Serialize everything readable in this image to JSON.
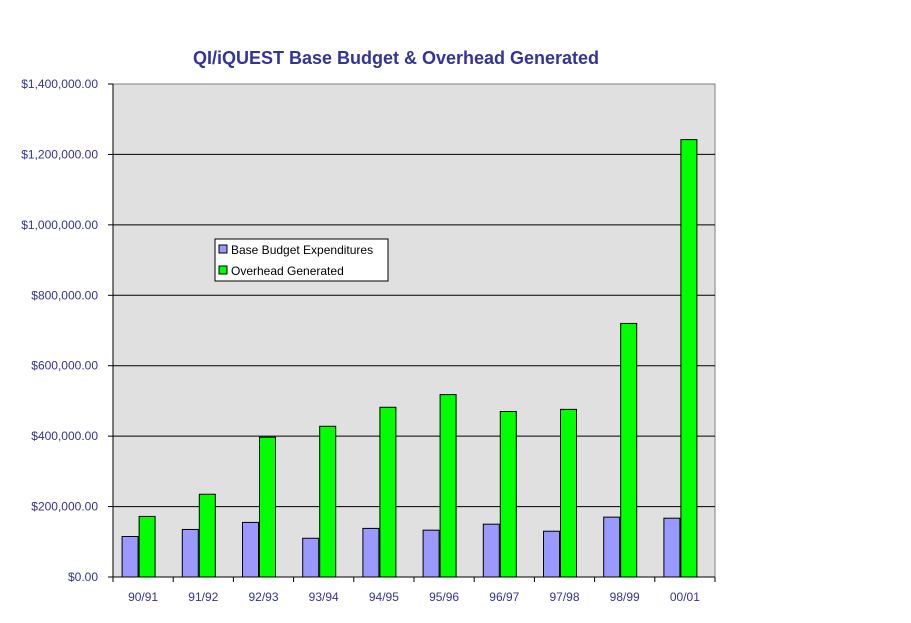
{
  "chart_data": {
    "type": "bar",
    "title": "QI/iQUEST Base Budget & Overhead Generated",
    "xlabel": "",
    "ylabel": "",
    "categories": [
      "90/91",
      "91/92",
      "92/93",
      "93/94",
      "94/95",
      "95/96",
      "96/97",
      "97/98",
      "98/99",
      "00/01"
    ],
    "series": [
      {
        "name": "Base Budget Expenditures",
        "color": "#9999ff",
        "values": [
          115000,
          135000,
          155000,
          110000,
          138000,
          133000,
          150000,
          130000,
          170000,
          167000
        ]
      },
      {
        "name": "Overhead Generated",
        "color": "#00ff00",
        "values": [
          172000,
          235000,
          397000,
          428000,
          482000,
          518000,
          470000,
          476000,
          720000,
          1242000
        ]
      }
    ],
    "ylim": [
      0,
      1400000
    ],
    "yticks": [
      0,
      200000,
      400000,
      600000,
      800000,
      1000000,
      1200000,
      1400000
    ],
    "ytick_labels": [
      "$0.00",
      "$200,000.00",
      "$400,000.00",
      "$600,000.00",
      "$800,000.00",
      "$1,000,000.00",
      "$1,200,000.00",
      "$1,400,000.00"
    ],
    "grid": true,
    "legend_position": "upper-left inside plot",
    "colors": {
      "plot_background": "#e0e0e0",
      "text": "#333399",
      "gridline": "#000000"
    }
  }
}
